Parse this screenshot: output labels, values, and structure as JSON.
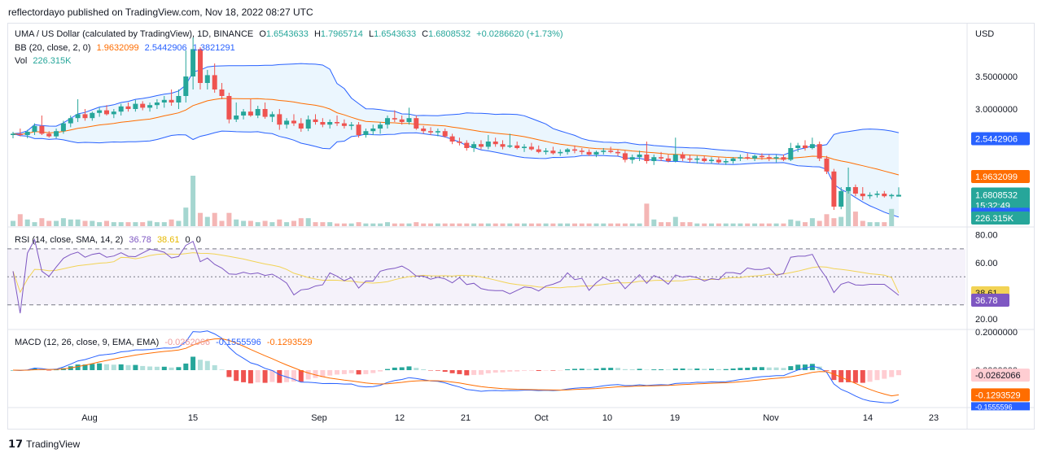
{
  "header": {
    "published": "reflectordayo published on TradingView.com, Nov 18, 2022 08:27 UTC"
  },
  "footer": {
    "brand": "TradingView",
    "logo": "tradingview-logo"
  },
  "colors": {
    "up": "#26a69a",
    "down": "#ef5350",
    "bb_upper": "#2962ff",
    "bb_basis": "#ff6d00",
    "bb_fill": "#e3f2fd",
    "rsi": "#7e57c2",
    "rsi_ma": "#f2d355",
    "macd": "#2962ff",
    "signal": "#ff6d00",
    "grid": "#f0f3fa",
    "axis_text": "#131722"
  },
  "legend": {
    "symbol": "UMA / US Dollar (calculated by TradingView), 1D, BINANCE",
    "o_label": "O",
    "o": "1.6543633",
    "h_label": "H",
    "h": "1.7965714",
    "l_label": "L",
    "l": "1.6543633",
    "c_label": "C",
    "c": "1.6808532",
    "change": "+0.0286620 (+1.73%)",
    "bb_label": "BB (20, close, 2, 0)",
    "bb_basis": "1.9632099",
    "bb_upper": "2.5442906",
    "bb_lower": "1.3821291",
    "vol_label": "Vol",
    "vol": "226.315K",
    "rsi_label": "RSI (14, close, SMA, 14, 2)",
    "rsi": "36.78",
    "rsi_ma": "38.61",
    "rsi_z1": "0",
    "rsi_z2": "0",
    "macd_label": "MACD (12, 26, close, 9, EMA, EMA)",
    "macd_hist": "-0.0262066",
    "macd": "-0.1555596",
    "signal": "-0.1293529"
  },
  "price_axis": {
    "currency": "USD",
    "ticks": [
      "3.5000000",
      "3.0000000"
    ],
    "badges": {
      "bb_upper": "2.5442906",
      "bb_basis": "1.9632099",
      "close": "1.6808532",
      "countdown": "15:32:49",
      "bb_lower": "1.3821291",
      "volume": "226.315K"
    }
  },
  "rsi_axis": {
    "ticks": [
      "80.00",
      "60.00",
      "20.00"
    ],
    "badges": {
      "rsi_ma": "38.61",
      "rsi": "36.78"
    }
  },
  "macd_axis": {
    "ticks": [
      "0.2000000",
      "0.0000000"
    ],
    "badges": {
      "hist": "-0.0262066",
      "signal": "-0.1293529",
      "macd": "-0.1555596"
    }
  },
  "time_axis": [
    "Aug",
    "15",
    "Sep",
    "12",
    "21",
    "Oct",
    "10",
    "19",
    "Nov",
    "14",
    "23"
  ],
  "chart_data": {
    "type": "candlestick",
    "instrument": "UMA / US Dollar",
    "interval": "1D",
    "price_ticks": [
      3.5,
      3.0
    ],
    "candles": [
      [
        2.6,
        2.65,
        2.55,
        2.62
      ],
      [
        2.62,
        2.7,
        2.58,
        2.6
      ],
      [
        2.6,
        2.68,
        2.55,
        2.65
      ],
      [
        2.65,
        2.78,
        2.6,
        2.74
      ],
      [
        2.74,
        2.9,
        2.6,
        2.62
      ],
      [
        2.62,
        2.66,
        2.56,
        2.58
      ],
      [
        2.58,
        2.7,
        2.55,
        2.66
      ],
      [
        2.66,
        2.82,
        2.62,
        2.78
      ],
      [
        2.78,
        2.9,
        2.72,
        2.86
      ],
      [
        2.86,
        3.15,
        2.8,
        2.92
      ],
      [
        2.92,
        3.0,
        2.82,
        2.86
      ],
      [
        2.86,
        2.96,
        2.82,
        2.94
      ],
      [
        2.94,
        3.02,
        2.88,
        2.98
      ],
      [
        2.98,
        3.06,
        2.9,
        2.92
      ],
      [
        2.92,
        3.0,
        2.86,
        2.96
      ],
      [
        2.96,
        3.08,
        2.9,
        3.04
      ],
      [
        3.04,
        3.1,
        2.96,
        3.0
      ],
      [
        3.0,
        3.14,
        2.96,
        3.08
      ],
      [
        3.08,
        3.12,
        2.98,
        3.02
      ],
      [
        3.02,
        3.1,
        2.96,
        3.06
      ],
      [
        3.06,
        3.15,
        3.0,
        3.1
      ],
      [
        3.1,
        3.2,
        3.02,
        3.14
      ],
      [
        3.14,
        3.3,
        3.05,
        3.1
      ],
      [
        3.1,
        3.3,
        3.0,
        3.2
      ],
      [
        3.2,
        3.9,
        3.1,
        3.5
      ],
      [
        3.5,
        4.1,
        3.3,
        3.92
      ],
      [
        3.92,
        3.95,
        3.3,
        3.4
      ],
      [
        3.4,
        3.6,
        3.3,
        3.52
      ],
      [
        3.52,
        3.7,
        3.25,
        3.3
      ],
      [
        3.3,
        3.4,
        3.15,
        3.2
      ],
      [
        3.2,
        3.25,
        2.78,
        2.84
      ],
      [
        2.84,
        3.1,
        2.8,
        2.9
      ],
      [
        2.9,
        3.0,
        2.84,
        2.96
      ],
      [
        2.96,
        3.15,
        2.88,
        2.9
      ],
      [
        2.9,
        3.05,
        2.86,
        3.0
      ],
      [
        3.0,
        3.1,
        2.85,
        2.88
      ],
      [
        2.88,
        2.96,
        2.8,
        2.92
      ],
      [
        2.92,
        3.0,
        2.68,
        2.76
      ],
      [
        2.76,
        2.86,
        2.7,
        2.82
      ],
      [
        2.82,
        2.92,
        2.74,
        2.78
      ],
      [
        2.78,
        2.86,
        2.65,
        2.7
      ],
      [
        2.7,
        2.9,
        2.66,
        2.84
      ],
      [
        2.84,
        2.92,
        2.76,
        2.8
      ],
      [
        2.8,
        2.86,
        2.72,
        2.76
      ],
      [
        2.76,
        2.84,
        2.7,
        2.8
      ],
      [
        2.8,
        2.9,
        2.74,
        2.78
      ],
      [
        2.78,
        2.84,
        2.7,
        2.74
      ],
      [
        2.74,
        2.8,
        2.68,
        2.76
      ],
      [
        2.76,
        2.8,
        2.56,
        2.6
      ],
      [
        2.6,
        2.7,
        2.56,
        2.66
      ],
      [
        2.66,
        2.76,
        2.6,
        2.7
      ],
      [
        2.7,
        2.8,
        2.62,
        2.76
      ],
      [
        2.76,
        2.9,
        2.7,
        2.86
      ],
      [
        2.86,
        2.98,
        2.8,
        2.84
      ],
      [
        2.84,
        2.9,
        2.76,
        2.8
      ],
      [
        2.8,
        3.02,
        2.76,
        2.86
      ],
      [
        2.86,
        2.9,
        2.68,
        2.7
      ],
      [
        2.7,
        2.74,
        2.62,
        2.66
      ],
      [
        2.66,
        2.72,
        2.6,
        2.64
      ],
      [
        2.64,
        2.7,
        2.58,
        2.66
      ],
      [
        2.66,
        2.7,
        2.56,
        2.58
      ],
      [
        2.58,
        2.62,
        2.46,
        2.5
      ],
      [
        2.5,
        2.56,
        2.44,
        2.48
      ],
      [
        2.48,
        2.52,
        2.36,
        2.4
      ],
      [
        2.4,
        2.5,
        2.34,
        2.46
      ],
      [
        2.46,
        2.52,
        2.38,
        2.42
      ],
      [
        2.42,
        2.6,
        2.38,
        2.5
      ],
      [
        2.5,
        2.56,
        2.42,
        2.46
      ],
      [
        2.46,
        2.52,
        2.38,
        2.42
      ],
      [
        2.42,
        2.62,
        2.4,
        2.44
      ],
      [
        2.44,
        2.5,
        2.38,
        2.4
      ],
      [
        2.4,
        2.46,
        2.34,
        2.42
      ],
      [
        2.42,
        2.48,
        2.36,
        2.38
      ],
      [
        2.38,
        2.44,
        2.32,
        2.34
      ],
      [
        2.34,
        2.4,
        2.3,
        2.36
      ],
      [
        2.36,
        2.42,
        2.3,
        2.32
      ],
      [
        2.32,
        2.38,
        2.28,
        2.34
      ],
      [
        2.34,
        2.4,
        2.3,
        2.38
      ],
      [
        2.38,
        2.44,
        2.32,
        2.36
      ],
      [
        2.36,
        2.4,
        2.3,
        2.34
      ],
      [
        2.34,
        2.38,
        2.28,
        2.3
      ],
      [
        2.3,
        2.36,
        2.26,
        2.34
      ],
      [
        2.34,
        2.4,
        2.3,
        2.36
      ],
      [
        2.36,
        2.42,
        2.32,
        2.34
      ],
      [
        2.34,
        2.38,
        2.28,
        2.32
      ],
      [
        2.32,
        2.36,
        2.18,
        2.22
      ],
      [
        2.22,
        2.3,
        2.16,
        2.26
      ],
      [
        2.26,
        2.36,
        2.2,
        2.3
      ],
      [
        2.3,
        2.5,
        2.16,
        2.2
      ],
      [
        2.2,
        2.3,
        2.14,
        2.26
      ],
      [
        2.26,
        2.34,
        2.2,
        2.24
      ],
      [
        2.24,
        2.3,
        2.18,
        2.2
      ],
      [
        2.2,
        2.56,
        2.18,
        2.3
      ],
      [
        2.3,
        2.34,
        2.2,
        2.24
      ],
      [
        2.24,
        2.3,
        2.18,
        2.22
      ],
      [
        2.22,
        2.28,
        2.16,
        2.24
      ],
      [
        2.24,
        2.28,
        2.18,
        2.2
      ],
      [
        2.2,
        2.26,
        2.16,
        2.22
      ],
      [
        2.22,
        2.26,
        2.16,
        2.18
      ],
      [
        2.18,
        2.24,
        2.14,
        2.2
      ],
      [
        2.2,
        2.26,
        2.16,
        2.24
      ],
      [
        2.24,
        2.3,
        2.2,
        2.26
      ],
      [
        2.26,
        2.32,
        2.22,
        2.24
      ],
      [
        2.24,
        2.3,
        2.2,
        2.28
      ],
      [
        2.28,
        2.32,
        2.22,
        2.26
      ],
      [
        2.26,
        2.3,
        2.2,
        2.24
      ],
      [
        2.24,
        2.3,
        2.18,
        2.26
      ],
      [
        2.26,
        2.3,
        2.2,
        2.22
      ],
      [
        2.22,
        2.48,
        2.2,
        2.4
      ],
      [
        2.4,
        2.48,
        2.34,
        2.44
      ],
      [
        2.44,
        2.52,
        2.36,
        2.4
      ],
      [
        2.4,
        2.56,
        2.38,
        2.46
      ],
      [
        2.46,
        2.5,
        2.2,
        2.24
      ],
      [
        2.24,
        2.28,
        2.0,
        2.04
      ],
      [
        2.04,
        2.08,
        1.45,
        1.5
      ],
      [
        1.5,
        1.8,
        1.46,
        1.74
      ],
      [
        1.74,
        2.1,
        1.7,
        1.8
      ],
      [
        1.8,
        1.84,
        1.66,
        1.7
      ],
      [
        1.7,
        1.8,
        1.6,
        1.66
      ],
      [
        1.66,
        1.72,
        1.62,
        1.68
      ],
      [
        1.68,
        1.74,
        1.64,
        1.7
      ],
      [
        1.7,
        1.74,
        1.64,
        1.66
      ],
      [
        1.66,
        1.7,
        1.62,
        1.68
      ],
      [
        1.6543633,
        1.7965714,
        1.6543633,
        1.6808532
      ]
    ],
    "bollinger": {
      "upper_last": 2.5442906,
      "basis_last": 1.9632099,
      "lower_last": 1.3821291
    },
    "volume": [
      0.4,
      0.9,
      0.5,
      0.3,
      0.6,
      0.4,
      0.4,
      0.6,
      0.5,
      0.5,
      0.4,
      0.4,
      0.3,
      0.4,
      0.3,
      0.3,
      0.3,
      0.3,
      0.3,
      0.4,
      0.3,
      0.3,
      0.5,
      0.4,
      1.4,
      3.8,
      1.0,
      0.7,
      1.0,
      0.4,
      1.0,
      0.5,
      0.4,
      0.4,
      0.3,
      0.4,
      0.3,
      0.5,
      0.3,
      0.4,
      0.6,
      0.6,
      0.3,
      0.3,
      0.3,
      0.2,
      0.2,
      0.2,
      0.3,
      0.2,
      0.2,
      0.2,
      0.3,
      0.2,
      0.2,
      0.2,
      0.3,
      0.2,
      0.2,
      0.2,
      0.2,
      0.2,
      0.2,
      0.2,
      0.2,
      0.2,
      0.2,
      0.2,
      0.2,
      0.2,
      0.2,
      0.2,
      0.2,
      0.2,
      0.2,
      0.2,
      0.2,
      0.2,
      0.2,
      0.2,
      0.2,
      0.2,
      0.2,
      0.2,
      0.2,
      0.2,
      0.2,
      0.2,
      1.7,
      0.5,
      0.3,
      0.3,
      0.7,
      0.3,
      0.3,
      0.2,
      0.2,
      0.2,
      0.2,
      0.2,
      0.2,
      0.2,
      0.2,
      0.2,
      0.2,
      0.2,
      0.2,
      0.2,
      0.5,
      0.4,
      0.3,
      0.6,
      0.4,
      0.9,
      0.6,
      0.7,
      2.9,
      1.1,
      0.4,
      0.3,
      0.3,
      0.3,
      1.3
    ],
    "volume_last": "226.315K",
    "rsi": {
      "period": 14,
      "last": 36.78,
      "ma_last": 38.61,
      "bands": [
        70,
        50,
        30
      ]
    },
    "rsi_ticks": [
      80,
      60,
      20
    ],
    "macd": {
      "fast": 12,
      "slow": 26,
      "signal_period": 9,
      "macd_last": -0.1555596,
      "signal_last": -0.1293529,
      "hist_last": -0.0262066
    },
    "macd_ticks": [
      0.2,
      0.0
    ],
    "x_labels": [
      "Aug",
      "15",
      "Sep",
      "12",
      "21",
      "Oct",
      "10",
      "19",
      "Nov",
      "14",
      "23"
    ]
  }
}
